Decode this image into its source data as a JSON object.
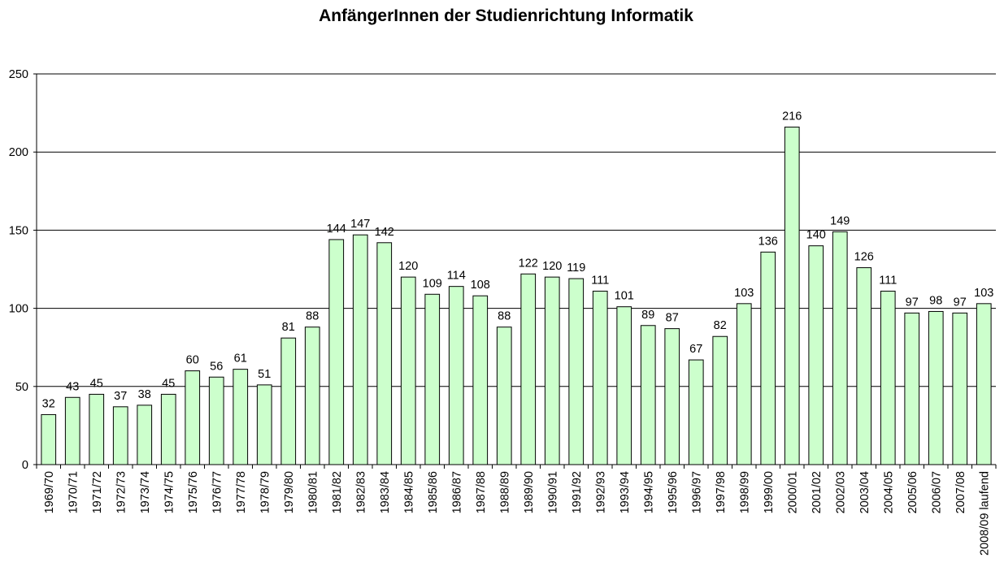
{
  "chart_data": {
    "type": "bar",
    "title": "AnfängerInnen der Studienrichtung Informatik",
    "xlabel": "",
    "ylabel": "",
    "ylim": [
      0,
      250
    ],
    "yticks": [
      0,
      50,
      100,
      150,
      200,
      250
    ],
    "grid": true,
    "legend": "none",
    "bar_color": "#ccffcc",
    "bar_edge_color": "#000000",
    "categories": [
      "1969/70",
      "1970/71",
      "1971/72",
      "1972/73",
      "1973/74",
      "1974/75",
      "1975/76",
      "1976/77",
      "1977/78",
      "1978/79",
      "1979/80",
      "1980/81",
      "1981/82",
      "1982/83",
      "1983/84",
      "1984/85",
      "1985/86",
      "1986/87",
      "1987/88",
      "1988/89",
      "1989/90",
      "1990/91",
      "1991/92",
      "1992/93",
      "1993/94",
      "1994/95",
      "1995/96",
      "1996/97",
      "1997/98",
      "1998/99",
      "1999/00",
      "2000/01",
      "2001/02",
      "2002/03",
      "2003/04",
      "2004/05",
      "2005/06",
      "2006/07",
      "2007/08",
      "2008/09 laufend"
    ],
    "values": [
      32,
      43,
      45,
      37,
      38,
      45,
      60,
      56,
      61,
      51,
      81,
      88,
      144,
      147,
      142,
      120,
      109,
      114,
      108,
      88,
      122,
      120,
      119,
      111,
      101,
      89,
      87,
      67,
      82,
      103,
      136,
      216,
      140,
      149,
      126,
      111,
      97,
      98,
      97,
      103
    ]
  }
}
